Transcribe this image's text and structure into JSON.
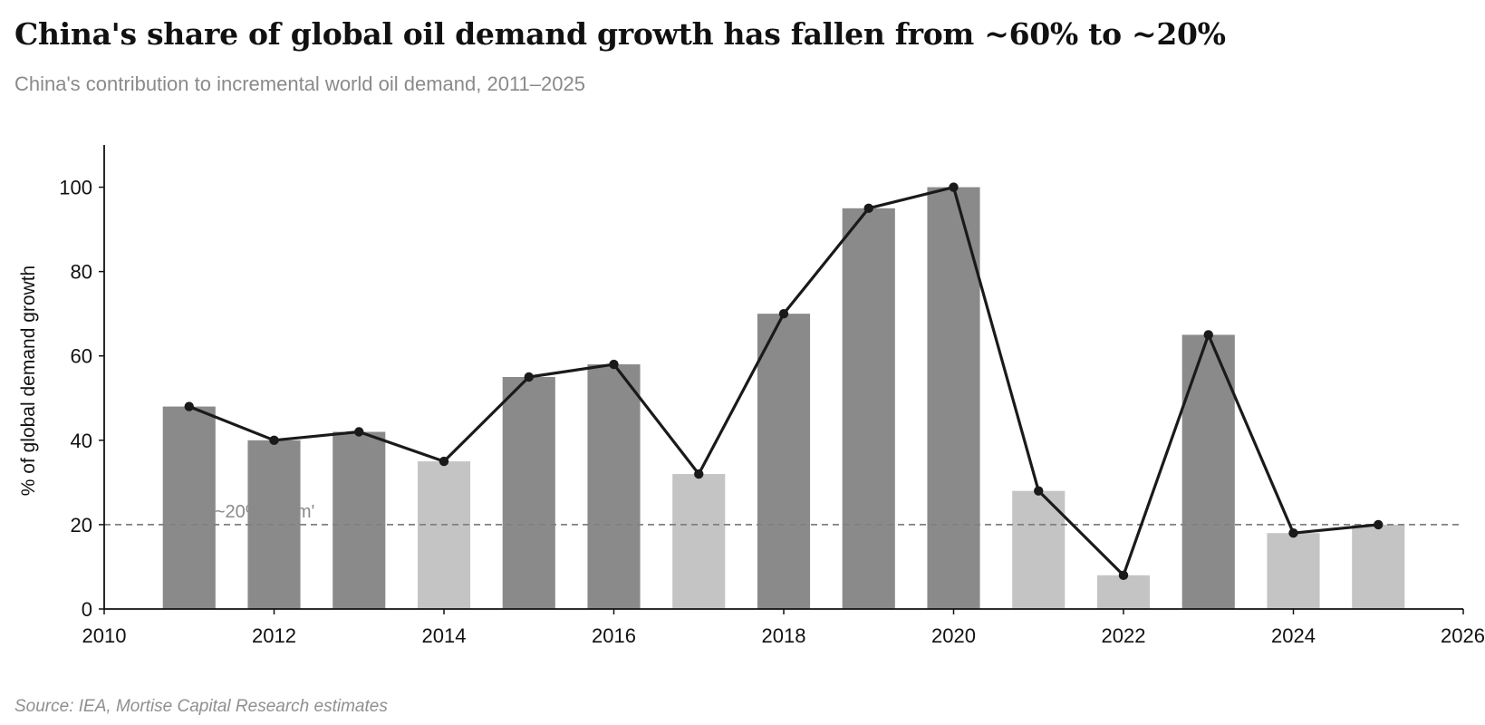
{
  "header": {
    "title": "China's share of global oil demand growth has fallen from ~60% to ~20%",
    "subtitle": "China's contribution to incremental world oil demand, 2011–2025"
  },
  "footer": {
    "source": "Source: IEA, Mortise Capital Research estimates"
  },
  "chart_data": {
    "type": "bar",
    "title": "",
    "xlabel": "",
    "ylabel": "% of global demand growth",
    "x": [
      2011,
      2012,
      2013,
      2014,
      2015,
      2016,
      2017,
      2018,
      2019,
      2020,
      2021,
      2022,
      2023,
      2024,
      2025
    ],
    "values": [
      48,
      40,
      42,
      35,
      55,
      58,
      32,
      70,
      95,
      100,
      28,
      8,
      65,
      18,
      20
    ],
    "line_values": [
      48,
      40,
      42,
      35,
      55,
      58,
      32,
      70,
      95,
      100,
      28,
      8,
      65,
      18,
      20
    ],
    "bar_shade": [
      "dark",
      "dark",
      "dark",
      "light",
      "dark",
      "dark",
      "light",
      "dark",
      "dark",
      "dark",
      "light",
      "light",
      "dark",
      "light",
      "light"
    ],
    "xlim": [
      2010,
      2026
    ],
    "ylim": [
      0,
      110
    ],
    "x_ticks": [
      2010,
      2012,
      2014,
      2016,
      2018,
      2020,
      2022,
      2024,
      2026
    ],
    "y_ticks": [
      0,
      20,
      40,
      60,
      80,
      100
    ],
    "reference_line": {
      "value": 20,
      "label": "~20% 'norm'"
    },
    "grid": false,
    "colors": {
      "bar_dark": "#8a8a8a",
      "bar_light": "#c4c4c4",
      "line": "#1a1a1a",
      "reference": "#808080",
      "axis": "#111111"
    }
  }
}
